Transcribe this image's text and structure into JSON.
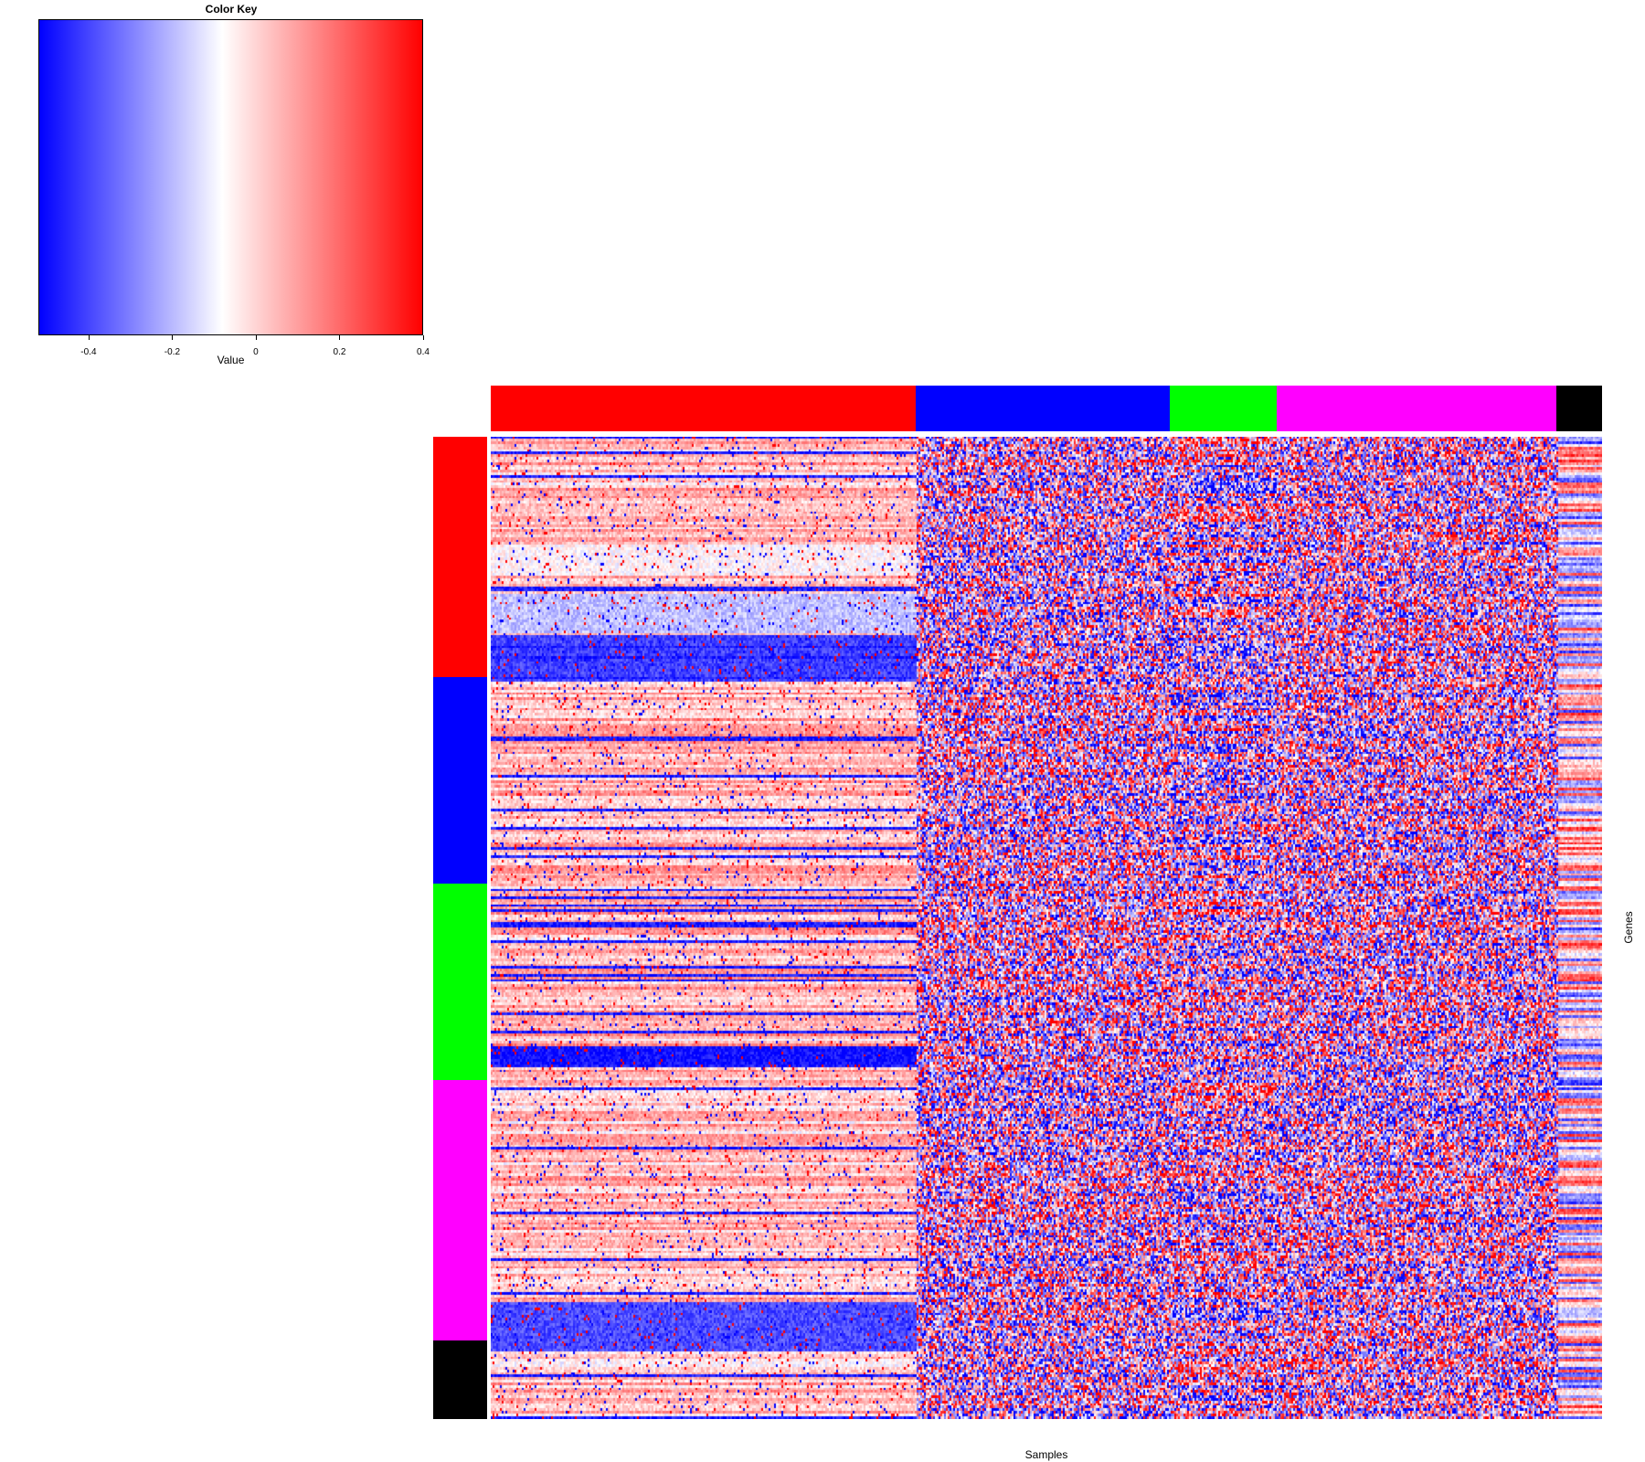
{
  "chart_data": {
    "type": "heatmap",
    "xlabel": "Samples",
    "ylabel": "Genes",
    "color_key": {
      "title": "Color Key",
      "xlabel": "Value",
      "range": [
        -0.52,
        0.4
      ],
      "ticks": [
        "-0.4",
        "-0.2",
        "0",
        "0.2",
        "0.4"
      ],
      "tick_values": [
        -0.4,
        -0.2,
        0,
        0.2,
        0.4
      ],
      "colors": [
        "#0000ff",
        "#ffffff",
        "#ff0000"
      ]
    },
    "column_groups": [
      {
        "color": "#ff0000",
        "fraction": 0.382
      },
      {
        "color": "#0000ff",
        "fraction": 0.229
      },
      {
        "color": "#00ff00",
        "fraction": 0.096
      },
      {
        "color": "#ff00ff",
        "fraction": 0.252
      },
      {
        "color": "#000000",
        "fraction": 0.041
      }
    ],
    "row_groups": [
      {
        "color": "#ff0000",
        "fraction": 0.245
      },
      {
        "color": "#0000ff",
        "fraction": 0.21
      },
      {
        "color": "#00ff00",
        "fraction": 0.2
      },
      {
        "color": "#ff00ff",
        "fraction": 0.265
      },
      {
        "color": "#000000",
        "fraction": 0.08
      }
    ],
    "grid": false,
    "legend": "top-left"
  }
}
